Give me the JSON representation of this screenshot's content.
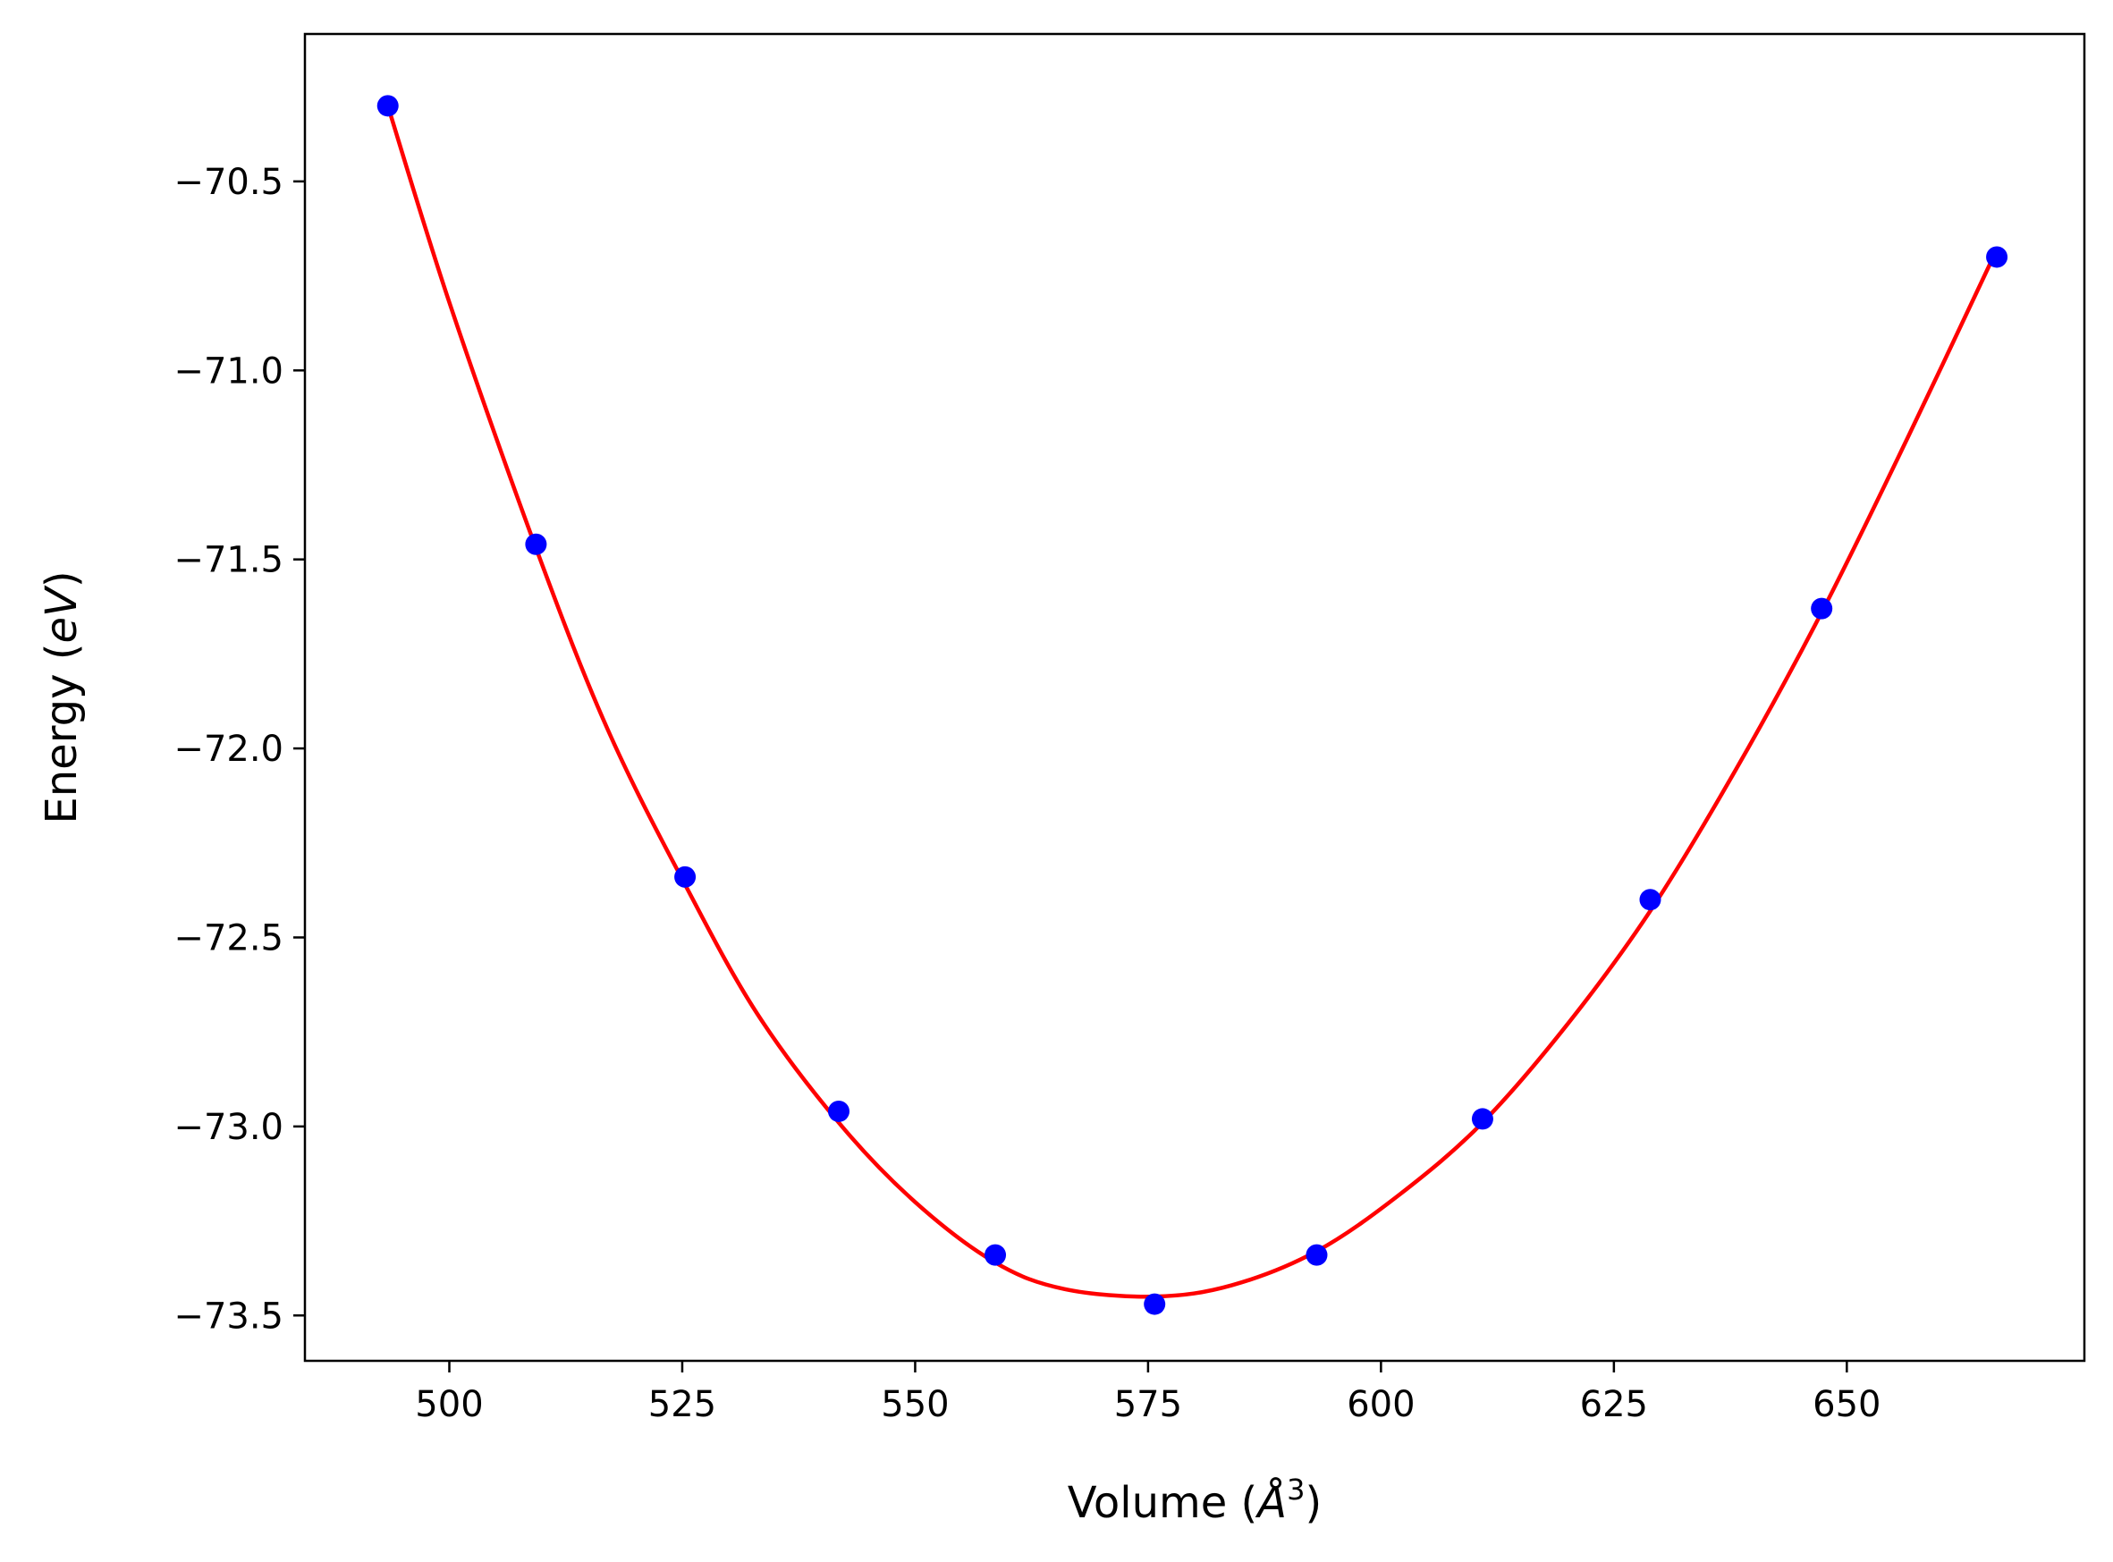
{
  "chart_data": {
    "type": "scatter",
    "xlabel": "Volume (Å³)",
    "xlabel_parts": {
      "text": "Volume (",
      "unit": "Å",
      "exp": "3",
      "close": ")"
    },
    "ylabel": "Energy (eV)",
    "ylabel_parts": {
      "text": "Energy (",
      "unit": "eV",
      "close": ")"
    },
    "xlim": [
      484.5,
      675.5
    ],
    "ylim": [
      -73.62,
      -70.11
    ],
    "x_ticks": [
      500,
      525,
      550,
      575,
      600,
      625,
      650
    ],
    "x_tick_labels": [
      "500",
      "525",
      "550",
      "575",
      "600",
      "625",
      "650"
    ],
    "y_ticks": [
      -70.5,
      -71.0,
      -71.5,
      -72.0,
      -72.5,
      -73.0,
      -73.5
    ],
    "y_tick_labels": [
      "−70.5",
      "−71.0",
      "−71.5",
      "−72.0",
      "−72.5",
      "−73.0",
      "−73.5"
    ],
    "grid": false,
    "legend": "none",
    "series": [
      {
        "kind": "points",
        "color": "#0000ff",
        "x": [
          493.4,
          509.3,
          525.3,
          541.8,
          558.6,
          575.7,
          593.1,
          610.9,
          628.9,
          647.3,
          666.1
        ],
        "y": [
          -70.3,
          -71.46,
          -72.34,
          -72.96,
          -73.34,
          -73.47,
          -73.34,
          -72.98,
          -72.4,
          -71.63,
          -70.7
        ]
      },
      {
        "kind": "fit-curve",
        "color": "#ff0000",
        "x": [
          493.4,
          500.0,
          509.3,
          517.0,
          525.3,
          533.0,
          541.8,
          550.0,
          558.6,
          566.0,
          575.7,
          584.0,
          593.1,
          602.0,
          610.9,
          620.0,
          628.9,
          638.0,
          647.3,
          656.5,
          666.1
        ],
        "y": [
          -70.3,
          -70.82,
          -71.47,
          -71.95,
          -72.36,
          -72.7,
          -72.99,
          -73.2,
          -73.36,
          -73.43,
          -73.45,
          -73.42,
          -73.33,
          -73.18,
          -72.99,
          -72.73,
          -72.43,
          -72.06,
          -71.64,
          -71.18,
          -70.68
        ]
      }
    ]
  }
}
